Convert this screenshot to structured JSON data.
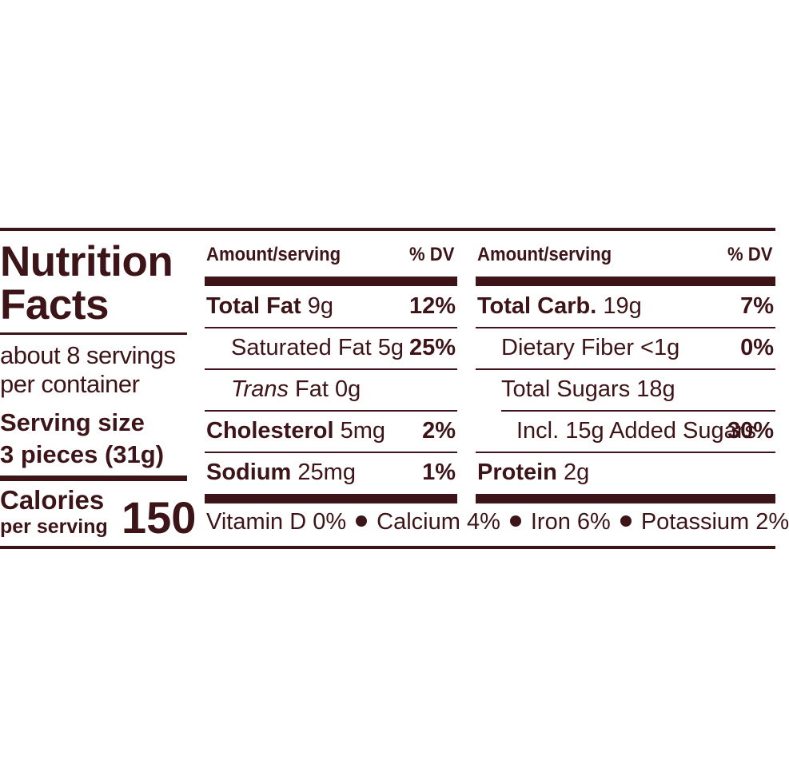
{
  "header": {
    "title_line1": "Nutrition",
    "title_line2": "Facts"
  },
  "servings": {
    "per_container_line1": "about 8 servings",
    "per_container_line2": "per container",
    "serving_size_line1": "Serving size",
    "serving_size_line2": "3 pieces (31g)"
  },
  "calories": {
    "label": "Calories",
    "sublabel": "per serving",
    "value": "150"
  },
  "col1": {
    "header_amount": "Amount/serving",
    "header_dv": "% DV",
    "rows": [
      {
        "name": "Total Fat",
        "amount": " 9g",
        "dv": "12%"
      },
      {
        "name": "Saturated Fat",
        "amount": " 5g",
        "dv": "25%"
      },
      {
        "name": "Trans",
        "amount": " Fat 0g",
        "dv": ""
      },
      {
        "name": "Cholesterol",
        "amount": " 5mg",
        "dv": "2%"
      },
      {
        "name": "Sodium",
        "amount": " 25mg",
        "dv": "1%"
      }
    ]
  },
  "col2": {
    "header_amount": "Amount/serving",
    "header_dv": "% DV",
    "rows": [
      {
        "name": "Total Carb.",
        "amount": " 19g",
        "dv": "7%"
      },
      {
        "name": "Dietary Fiber",
        "amount": " <1g",
        "dv": "0%"
      },
      {
        "name": "Total Sugars",
        "amount": " 18g",
        "dv": ""
      },
      {
        "name": "Incl. 15g Added Sugars",
        "amount": "",
        "dv": "30%"
      },
      {
        "name": "Protein",
        "amount": " 2g",
        "dv": ""
      }
    ]
  },
  "vitamins": {
    "vitamin_d": "Vitamin D 0%",
    "calcium": "Calcium 4%",
    "iron": "Iron 6%",
    "potassium": "Potassium 2%"
  },
  "colors": {
    "ink": "#3d1418",
    "background": "#ffffff"
  }
}
